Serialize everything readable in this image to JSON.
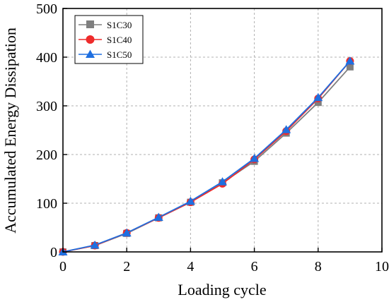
{
  "chart_data": {
    "type": "line",
    "xlabel": "Loading cycle",
    "ylabel": "Accumulated Energy Dissipation",
    "xlim": [
      0,
      10
    ],
    "ylim": [
      0,
      500
    ],
    "xticks": [
      0,
      2,
      4,
      6,
      8,
      10
    ],
    "yticks": [
      0,
      100,
      200,
      300,
      400,
      500
    ],
    "grid": true,
    "legend_position": "top-left",
    "series": [
      {
        "name": "S1C30",
        "color": "#7f7f7f",
        "marker": "square",
        "x": [
          0,
          1,
          2,
          3,
          4,
          5,
          6,
          7,
          8,
          9
        ],
        "y": [
          0,
          13,
          38,
          70,
          102,
          142,
          186,
          244,
          307,
          380
        ]
      },
      {
        "name": "S1C40",
        "color": "#ee2b2b",
        "marker": "circle",
        "x": [
          0,
          1,
          2,
          3,
          4,
          5,
          6,
          7,
          8,
          9
        ],
        "y": [
          0,
          13,
          39,
          70,
          102,
          140,
          190,
          248,
          315,
          392
        ]
      },
      {
        "name": "S1C50",
        "color": "#1f6fe0",
        "marker": "triangle",
        "x": [
          0,
          1,
          2,
          3,
          4,
          5,
          6,
          7,
          8,
          9
        ],
        "y": [
          0,
          14,
          39,
          71,
          104,
          144,
          192,
          251,
          317,
          392
        ]
      }
    ]
  }
}
